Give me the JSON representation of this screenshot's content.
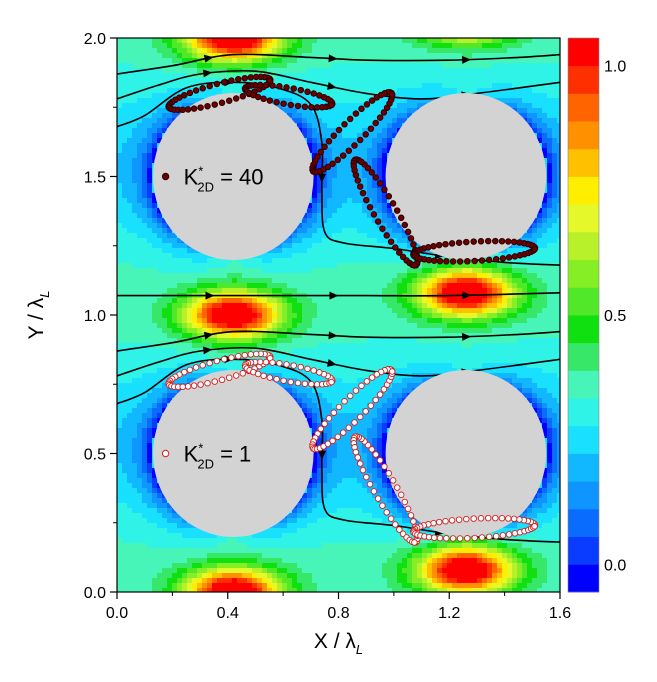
{
  "chart_data": {
    "type": "contour",
    "title": "",
    "xlabel": {
      "main": "X / λ",
      "sub": "L"
    },
    "ylabel": {
      "main": "Y / λ",
      "sub": "L"
    },
    "xlim": [
      0,
      1.6
    ],
    "ylim": [
      0,
      2.0
    ],
    "xticks": [
      {
        "value": 0.0,
        "label": "0.0"
      },
      {
        "value": 0.4,
        "label": "0.4"
      },
      {
        "value": 0.8,
        "label": "0.8"
      },
      {
        "value": 1.2,
        "label": "1.2"
      },
      {
        "value": 1.6,
        "label": "1.6"
      }
    ],
    "yticks": [
      {
        "value": 0.0,
        "label": "0.0"
      },
      {
        "value": 0.5,
        "label": "0.5"
      },
      {
        "value": 1.0,
        "label": "1.0"
      },
      {
        "value": 1.5,
        "label": "1.5"
      },
      {
        "value": 2.0,
        "label": "2.0"
      }
    ],
    "colorbar": {
      "range": [
        0.0,
        1.0
      ],
      "ticks": [
        {
          "value": 1.0,
          "label": "1.0"
        },
        {
          "value": 0.5,
          "label": "0.5"
        },
        {
          "value": 0.0,
          "label": "0.0"
        }
      ],
      "colors": [
        "#0000ff",
        "#0a3cff",
        "#0a6cff",
        "#0f95ff",
        "#12b8ff",
        "#1ae0ff",
        "#2ff3e6",
        "#48f5b8",
        "#37e868",
        "#10e010",
        "#50e828",
        "#86ee25",
        "#b8f02a",
        "#e4f82a",
        "#ffee00",
        "#ffc000",
        "#ff9000",
        "#ff6400",
        "#ff3000",
        "#ff0000"
      ]
    },
    "obstacles": [
      {
        "cx": 0.42,
        "cy": 0.5,
        "r": 0.29
      },
      {
        "cx": 1.26,
        "cy": 0.5,
        "r": 0.29
      },
      {
        "cx": 0.42,
        "cy": 1.5,
        "r": 0.29
      },
      {
        "cx": 1.26,
        "cy": 1.5,
        "r": 0.29
      }
    ],
    "field_peaks": [
      {
        "x": 0.42,
        "y": 0.0,
        "amplitude": 1.0
      },
      {
        "x": 1.26,
        "y": 0.08,
        "amplitude": 1.0
      },
      {
        "x": 0.42,
        "y": 1.0,
        "amplitude": 1.0
      },
      {
        "x": 1.26,
        "y": 1.08,
        "amplitude": 1.0
      },
      {
        "x": 0.42,
        "y": 2.0,
        "amplitude": 1.0
      },
      {
        "x": 1.26,
        "y": 2.08,
        "amplitude": 1.0
      }
    ],
    "streamlines": [
      {
        "points": [
          [
            0,
            0.68
          ],
          [
            0.1,
            0.72
          ],
          [
            0.25,
            0.82
          ],
          [
            0.42,
            0.84
          ],
          [
            0.58,
            0.82
          ],
          [
            0.7,
            0.76
          ],
          [
            0.74,
            0.62
          ],
          [
            0.74,
            0.45
          ],
          [
            0.75,
            0.3
          ],
          [
            0.82,
            0.26
          ],
          [
            1.0,
            0.24
          ],
          [
            1.2,
            0.21
          ],
          [
            1.4,
            0.19
          ],
          [
            1.6,
            0.18
          ]
        ]
      },
      {
        "points": [
          [
            0,
            0.78
          ],
          [
            0.15,
            0.83
          ],
          [
            0.3,
            0.87
          ],
          [
            0.5,
            0.88
          ],
          [
            0.7,
            0.84
          ],
          [
            0.9,
            0.8
          ],
          [
            1.1,
            0.78
          ],
          [
            1.3,
            0.8
          ],
          [
            1.6,
            0.84
          ]
        ]
      },
      {
        "points": [
          [
            0,
            0.87
          ],
          [
            0.2,
            0.9
          ],
          [
            0.42,
            0.94
          ],
          [
            0.7,
            0.93
          ],
          [
            0.9,
            0.92
          ],
          [
            1.2,
            0.92
          ],
          [
            1.45,
            0.93
          ],
          [
            1.6,
            0.94
          ]
        ]
      },
      {
        "points": [
          [
            0,
            1.07
          ],
          [
            0.3,
            1.07
          ],
          [
            0.6,
            1.07
          ],
          [
            0.9,
            1.07
          ],
          [
            1.2,
            1.07
          ],
          [
            1.6,
            1.08
          ]
        ]
      },
      {
        "points": [
          [
            0,
            1.68
          ],
          [
            0.1,
            1.72
          ],
          [
            0.25,
            1.82
          ],
          [
            0.42,
            1.84
          ],
          [
            0.58,
            1.82
          ],
          [
            0.7,
            1.76
          ],
          [
            0.74,
            1.62
          ],
          [
            0.74,
            1.45
          ],
          [
            0.75,
            1.3
          ],
          [
            0.82,
            1.26
          ],
          [
            1.0,
            1.24
          ],
          [
            1.2,
            1.21
          ],
          [
            1.4,
            1.19
          ],
          [
            1.6,
            1.18
          ]
        ]
      },
      {
        "points": [
          [
            0,
            1.78
          ],
          [
            0.15,
            1.83
          ],
          [
            0.3,
            1.87
          ],
          [
            0.5,
            1.88
          ],
          [
            0.7,
            1.84
          ],
          [
            0.9,
            1.8
          ],
          [
            1.1,
            1.78
          ],
          [
            1.3,
            1.8
          ],
          [
            1.6,
            1.84
          ]
        ]
      },
      {
        "points": [
          [
            0,
            1.87
          ],
          [
            0.2,
            1.9
          ],
          [
            0.42,
            1.94
          ],
          [
            0.7,
            1.93
          ],
          [
            0.9,
            1.92
          ],
          [
            1.2,
            1.92
          ],
          [
            1.45,
            1.93
          ],
          [
            1.6,
            1.94
          ]
        ]
      }
    ],
    "series": [
      {
        "name": "K*2D = 40",
        "label_main": "K",
        "label_sup": "*",
        "label_sub": "2D",
        "label_value": " = 40",
        "marker": "filled",
        "color": "#6b0000",
        "edge": "#2a0000",
        "legend_pos": [
          0.19,
          1.5
        ],
        "loops": [
          {
            "cx": 0.37,
            "cy": 1.8,
            "rx": 0.19,
            "ry": 0.035,
            "angle": 15,
            "n": 44
          },
          {
            "cx": 0.62,
            "cy": 1.79,
            "rx": 0.16,
            "ry": 0.03,
            "angle": -10,
            "n": 38
          },
          {
            "cx": 0.85,
            "cy": 1.66,
            "rx": 0.2,
            "ry": 0.04,
            "angle": 45,
            "n": 44
          },
          {
            "cx": 0.97,
            "cy": 1.37,
            "rx": 0.22,
            "ry": 0.04,
            "angle": -60,
            "n": 46
          },
          {
            "cx": 1.29,
            "cy": 1.23,
            "rx": 0.22,
            "ry": 0.035,
            "angle": 3,
            "n": 52
          }
        ]
      },
      {
        "name": "K*2D = 1",
        "label_main": "K",
        "label_sup": "*",
        "label_sub": "2D",
        "label_value": " = 1",
        "marker": "hollow",
        "color": "#ffffff",
        "edge": "#d42020",
        "legend_pos": [
          0.19,
          0.5
        ],
        "loops": [
          {
            "cx": 0.37,
            "cy": 0.8,
            "rx": 0.19,
            "ry": 0.035,
            "angle": 15,
            "n": 44
          },
          {
            "cx": 0.62,
            "cy": 0.79,
            "rx": 0.16,
            "ry": 0.03,
            "angle": -10,
            "n": 38
          },
          {
            "cx": 0.85,
            "cy": 0.66,
            "rx": 0.2,
            "ry": 0.04,
            "angle": 45,
            "n": 44
          },
          {
            "cx": 0.97,
            "cy": 0.37,
            "rx": 0.22,
            "ry": 0.04,
            "angle": -60,
            "n": 46
          },
          {
            "cx": 1.29,
            "cy": 0.23,
            "rx": 0.22,
            "ry": 0.035,
            "angle": 3,
            "n": 52
          }
        ]
      }
    ]
  }
}
